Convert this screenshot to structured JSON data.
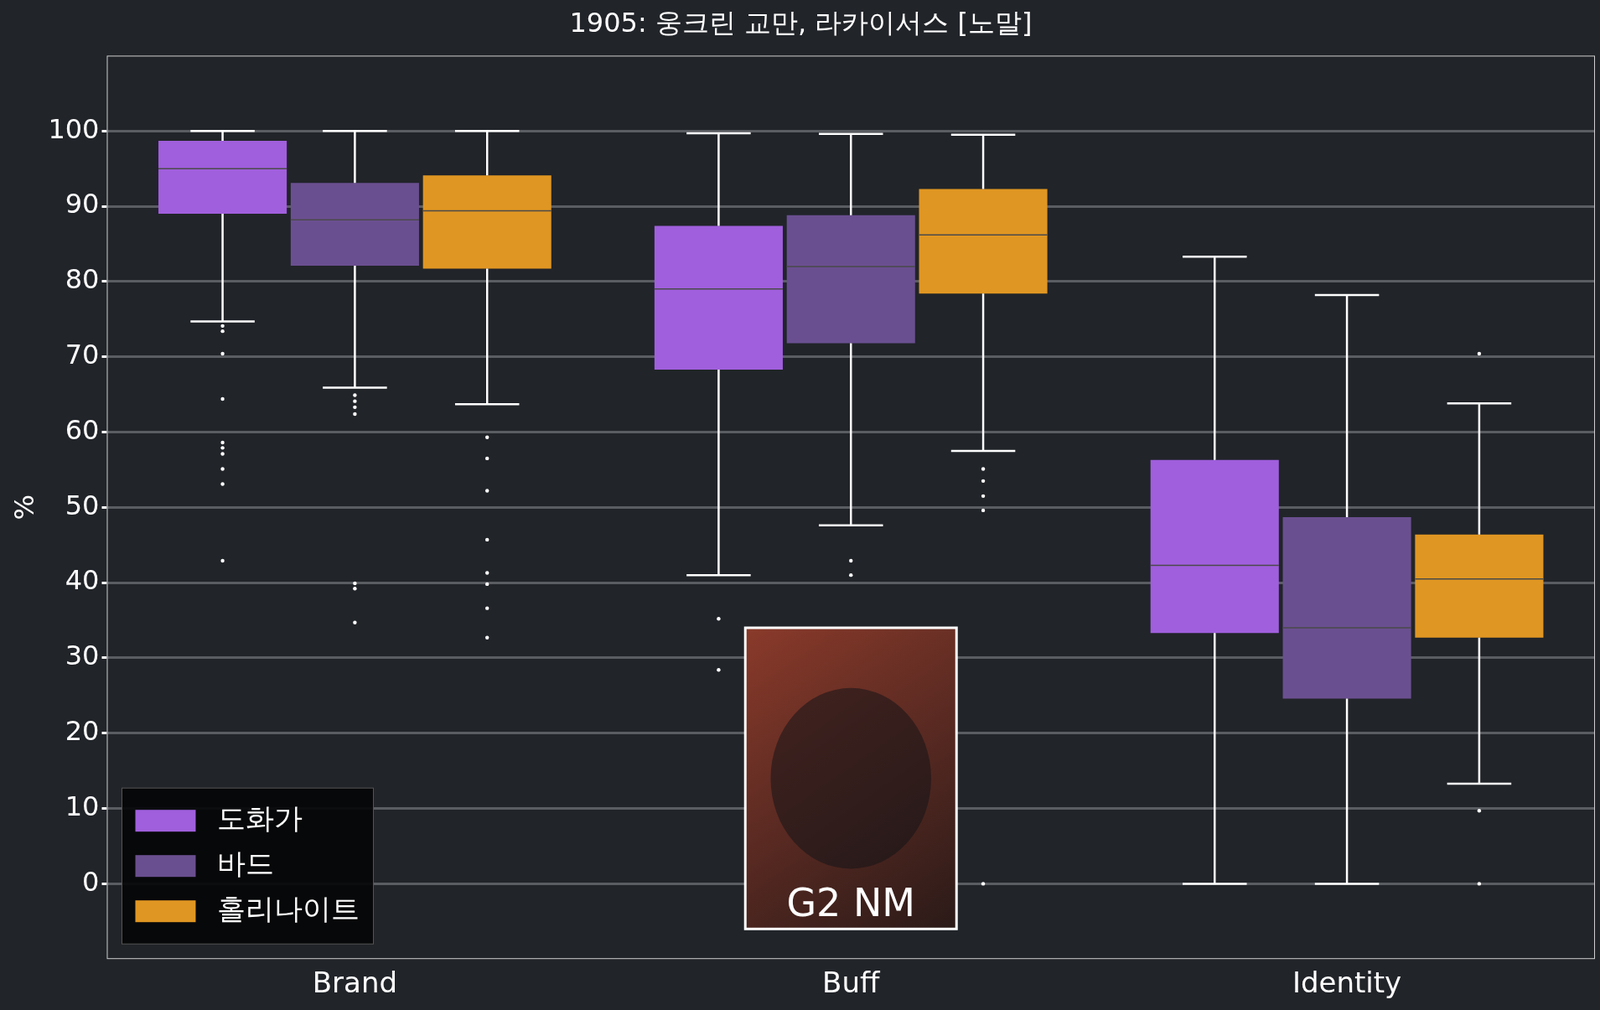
{
  "chart_data": {
    "type": "box",
    "title": "1905: 웅크린 교만, 라카이서스 [노말]",
    "y_label": "%",
    "categories": [
      "Brand",
      "Buff",
      "Identity"
    ],
    "series": [
      {
        "name": "도화가",
        "color": "#a05fdd",
        "values": [
          {
            "min": 74.7,
            "q1": 89.0,
            "median": 95.0,
            "q3": 98.7,
            "max": 100,
            "outliers": [
              74.1,
              73.4,
              70.4,
              64.4,
              58.6,
              57.9,
              57.1,
              55.1,
              53.1,
              42.9
            ]
          },
          {
            "min": 41.0,
            "q1": 68.3,
            "median": 79.0,
            "q3": 87.4,
            "max": 99.7,
            "outliers": [
              35.2,
              28.4
            ]
          },
          {
            "min": 0,
            "q1": 33.3,
            "median": 42.3,
            "q3": 56.3,
            "max": 83.3,
            "outliers": []
          }
        ]
      },
      {
        "name": "바드",
        "color": "#6a4f90",
        "values": [
          {
            "min": 65.9,
            "q1": 82.1,
            "median": 88.2,
            "q3": 93.1,
            "max": 100,
            "outliers": [
              64.9,
              64.1,
              63.3,
              62.4,
              39.9,
              39.2,
              34.7
            ]
          },
          {
            "min": 47.6,
            "q1": 71.8,
            "median": 82.0,
            "q3": 88.8,
            "max": 99.6,
            "outliers": [
              42.9,
              41.0
            ]
          },
          {
            "min": 0,
            "q1": 24.6,
            "median": 34.0,
            "q3": 48.7,
            "max": 78.2,
            "outliers": []
          }
        ]
      },
      {
        "name": "홀리나이트",
        "color": "#e09622",
        "values": [
          {
            "min": 63.7,
            "q1": 81.7,
            "median": 89.4,
            "q3": 94.1,
            "max": 100,
            "outliers": [
              59.3,
              56.5,
              52.2,
              45.7,
              41.3,
              39.8,
              36.6,
              32.7
            ]
          },
          {
            "min": 57.5,
            "q1": 78.4,
            "median": 86.2,
            "q3": 92.3,
            "max": 99.5,
            "outliers": [
              55.1,
              53.5,
              51.5,
              49.6,
              0
            ]
          },
          {
            "min": 13.3,
            "q1": 32.7,
            "median": 40.5,
            "q3": 46.4,
            "max": 63.8,
            "outliers": [
              70.4,
              9.7,
              0
            ]
          }
        ]
      }
    ],
    "ylim": [
      -10,
      110
    ],
    "yticks": [
      0,
      10,
      20,
      30,
      40,
      50,
      60,
      70,
      80,
      90,
      100
    ],
    "grid": true,
    "legend": "lower left",
    "annotations": [
      {
        "text": "G2 NM"
      }
    ]
  }
}
